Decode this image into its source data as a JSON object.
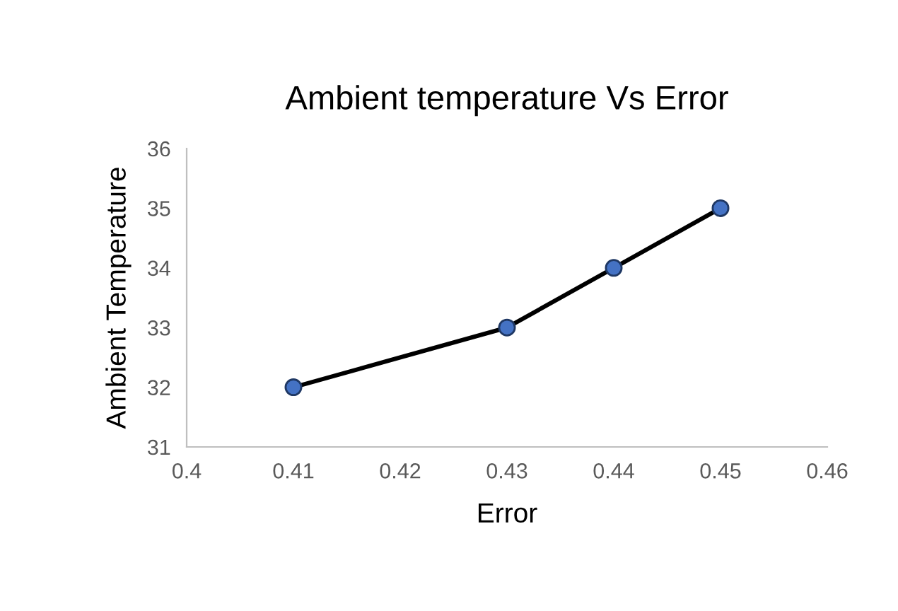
{
  "chart_data": {
    "type": "line",
    "title": "Ambient temperature Vs Error",
    "xlabel": "Error",
    "ylabel": "Ambient Temperature",
    "x": [
      0.41,
      0.43,
      0.44,
      0.45
    ],
    "series": [
      {
        "color": "#000000",
        "colors": [
          "#4472c4",
          "#4472c4",
          "#4472c4",
          "#4472c4"
        ],
        "values": [
          32,
          33,
          34,
          35
        ]
      }
    ],
    "xlim": [
      0.4,
      0.46
    ],
    "xticks": [
      0.4,
      0.41,
      0.42,
      0.43,
      0.44,
      0.45,
      0.46
    ],
    "ylim": [
      31,
      36
    ],
    "yticks": [
      31,
      32,
      33,
      34,
      35,
      36
    ],
    "grid": false,
    "legend": false,
    "marker": "circle",
    "line_style": "solid"
  }
}
